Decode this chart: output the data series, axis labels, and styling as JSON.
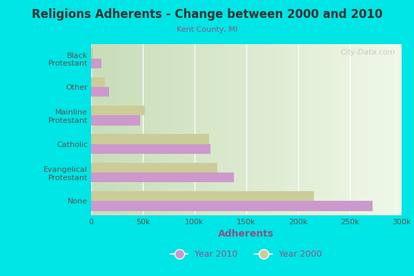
{
  "title": "Religions Adherents - Change between 2000 and 2010",
  "subtitle": "Kent County, MI",
  "xlabel": "Adherents",
  "categories": [
    "Black\nProtestant",
    "Other",
    "Mainline\nProtestant",
    "Catholic",
    "Evangelical\nProtestant",
    "None"
  ],
  "year2010": [
    10000,
    17000,
    47000,
    115000,
    138000,
    272000
  ],
  "year2000": [
    2000,
    13000,
    52000,
    114000,
    122000,
    215000
  ],
  "color_2010": "#cc99cc",
  "color_2000": "#cccc99",
  "background_outer": "#00e5e5",
  "background_plot_left": "#c8ddb8",
  "background_plot_right": "#f0f8e8",
  "xlim": [
    0,
    300000
  ],
  "xticks": [
    0,
    50000,
    100000,
    150000,
    200000,
    250000,
    300000
  ],
  "xtick_labels": [
    "0",
    "50k",
    "100k",
    "150k",
    "200k",
    "250k",
    "300k"
  ],
  "watermark": "City-Data.com"
}
